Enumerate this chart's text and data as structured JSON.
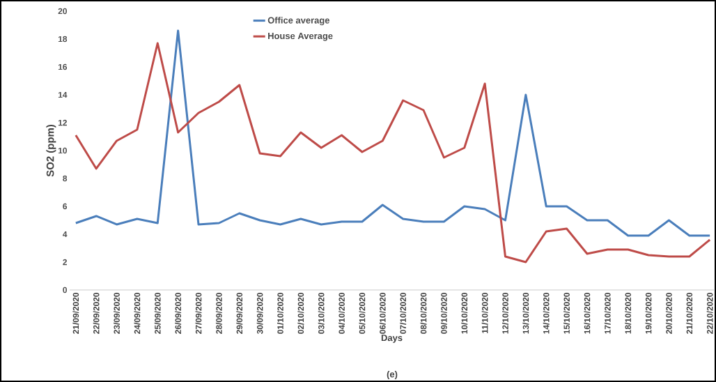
{
  "chart_data": {
    "type": "line",
    "xlabel": "Days",
    "ylabel": "SO2 (ppm)",
    "annotations": [
      "(e)"
    ],
    "categories": [
      "21/09/2020",
      "22/09/2020",
      "23/09/2020",
      "24/09/2020",
      "25/09/2020",
      "26/09/2020",
      "27/09/2020",
      "28/09/2020",
      "29/09/2020",
      "30/09/2020",
      "01/10/2020",
      "02/10/2020",
      "03/10/2020",
      "04/10/2020",
      "05/10/2020",
      "06/10/2020",
      "07/10/2020",
      "08/10/2020",
      "09/10/2020",
      "10/10/2020",
      "11/10/2020",
      "12/10/2020",
      "13/10/2020",
      "14/10/2020",
      "15/10/2020",
      "16/10/2020",
      "17/10/2020",
      "18/10/2020",
      "19/10/2020",
      "20/10/2020",
      "21/10/2020",
      "22/10/2020"
    ],
    "series": [
      {
        "name": "Office average",
        "color": "#4a7ebb",
        "values": [
          4.8,
          5.3,
          4.7,
          5.1,
          4.8,
          18.6,
          4.7,
          4.8,
          5.5,
          5.0,
          4.7,
          5.1,
          4.7,
          4.9,
          4.9,
          6.1,
          5.1,
          4.9,
          4.9,
          6.0,
          5.8,
          5.0,
          14.0,
          6.0,
          6.0,
          5.0,
          5.0,
          3.9,
          3.9,
          5.0,
          3.9,
          3.9
        ]
      },
      {
        "name": "House Average",
        "color": "#be4b48",
        "values": [
          11.1,
          8.7,
          10.7,
          11.5,
          17.7,
          11.3,
          12.7,
          13.5,
          14.7,
          9.8,
          9.6,
          11.3,
          10.2,
          11.1,
          9.9,
          10.7,
          13.6,
          12.9,
          9.5,
          10.2,
          14.8,
          2.4,
          2.0,
          4.2,
          4.4,
          2.6,
          2.9,
          2.9,
          2.5,
          2.4,
          2.4,
          3.6
        ]
      }
    ],
    "ylim": [
      0,
      20
    ],
    "yticks": [
      0,
      2,
      4,
      6,
      8,
      10,
      12,
      14,
      16,
      18,
      20
    ],
    "grid": false,
    "legend": "top",
    "marker": "none",
    "line_style": "solid"
  }
}
